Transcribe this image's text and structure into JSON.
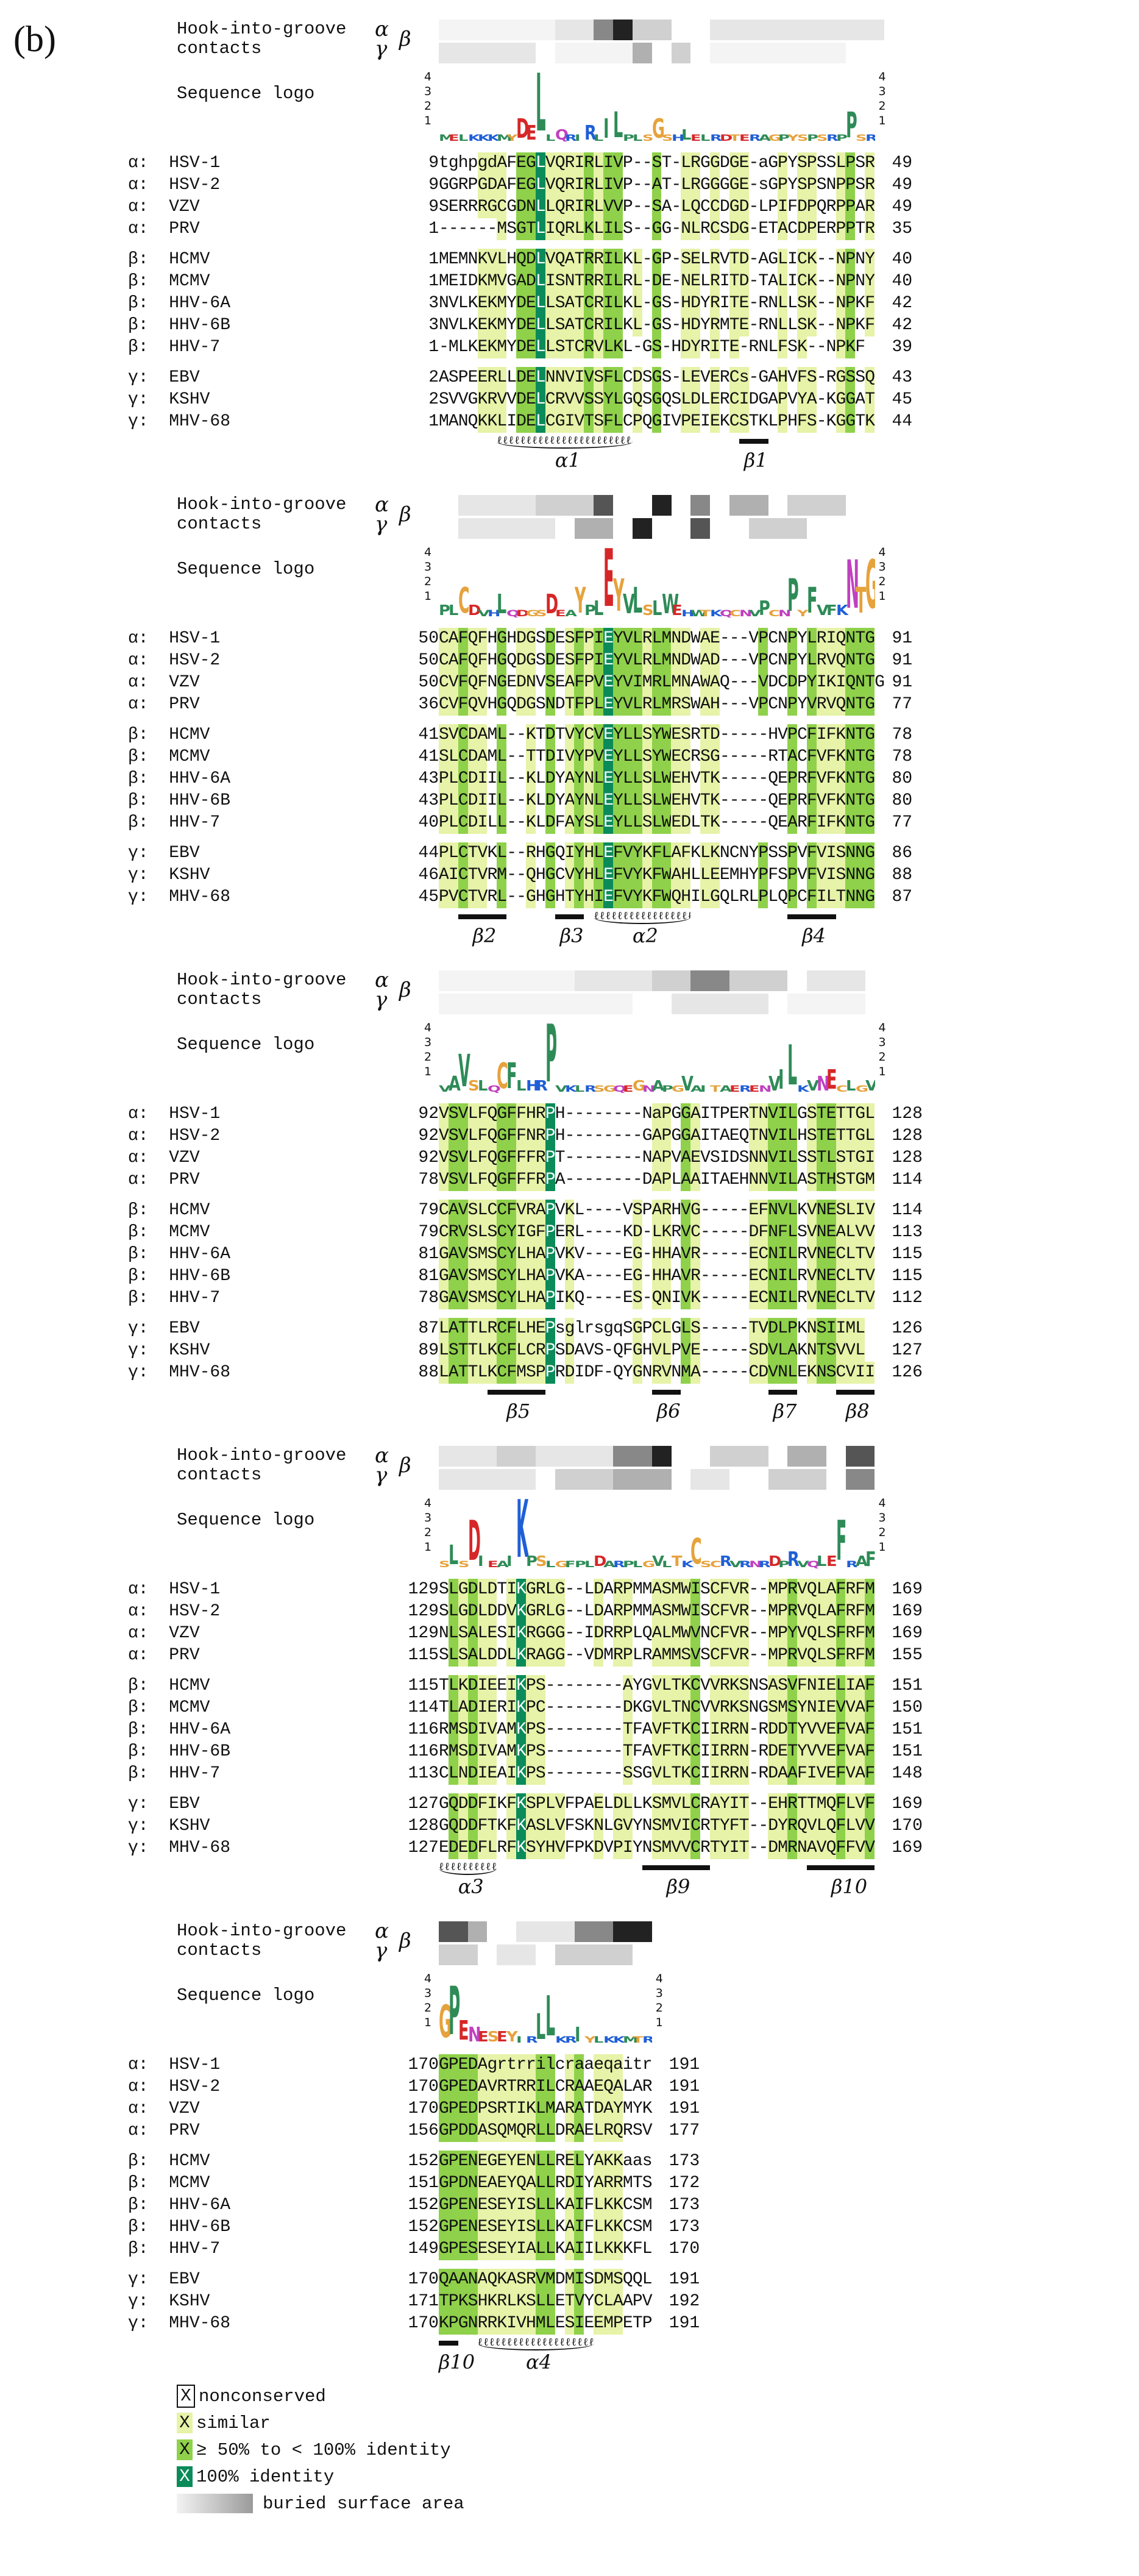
{
  "panel_label": "(b)",
  "header": {
    "contacts_label_1": "Hook-into-groove",
    "contacts_label_2": "contacts",
    "logo_label": "Sequence logo",
    "alpha_symbol": "α",
    "gamma_symbol": "γ",
    "beta_symbol": "β",
    "axis_ticks": [
      "4",
      "3",
      "2",
      "1"
    ]
  },
  "species": [
    {
      "label": "α:  HSV-1"
    },
    {
      "label": "α:  HSV-2"
    },
    {
      "label": "α:  VZV"
    },
    {
      "label": "α:  PRV"
    },
    {
      "label": "β:  HCMV"
    },
    {
      "label": "β:  MCMV"
    },
    {
      "label": "β:  HHV-6A"
    },
    {
      "label": "β:  HHV-6B"
    },
    {
      "label": "β:  HHV-7"
    },
    {
      "label": "γ:  EBV"
    },
    {
      "label": "γ:  KSHV"
    },
    {
      "label": "γ:  MHV-68"
    }
  ],
  "blocks": [
    {
      "rows": [
        {
          "start": "9",
          "seq": "tghpgdAFEGLVQRIRLIVP--ST-LRGGDGE-aGPYSPSSLPSR",
          "end": "49"
        },
        {
          "start": "9",
          "seq": "GGRPGDAFEGLVQRIRLIVP--AT-LRGGGGE-sGPYSPSNPPSR",
          "end": "49"
        },
        {
          "start": "9",
          "seq": "SERRRGCGDNLLQRIRLVVP--SA-LQCCDGD-LPIFDPQRPPAR",
          "end": "49"
        },
        {
          "start": "1",
          "seq": "------MSGTLIQRLKLILS--GG-NLRCSDG-ETACDPERPPTR",
          "end": "35"
        },
        {
          "start": "1",
          "seq": "MEMNKVLHQDLVQATRRILKL-GP-SELRVTD-AGLICK--NPNY",
          "end": "40"
        },
        {
          "start": "1",
          "seq": "MEIDKMVGADLISNTRRILRL-DE-NELRITD-TALICK--NPNY",
          "end": "40"
        },
        {
          "start": "3",
          "seq": "NVLKEKMYDELLSATCRILKL-GS-HDYRITE-RNLLSK--NPKF",
          "end": "42"
        },
        {
          "start": "3",
          "seq": "NVLKEKMYDELLSATCRILKL-GS-HDYRMTE-RNLLSK--NPKF",
          "end": "42"
        },
        {
          "start": "1",
          "seq": "-MLKEKMYDELLSTCRVLKL-GS-HDYRITE-RNLFSK--NPKF",
          "end": "39"
        },
        {
          "start": "2",
          "seq": "ASPEERLLDELNNVIVSFLCDSGS-LEVERCs-GAHVFS-RGSSQ",
          "end": "43"
        },
        {
          "start": "2",
          "seq": "SVVGKRVVDELCRVVSSYLGQSGQSLDLERCIDGAPVYA-KGGAT",
          "end": "45"
        },
        {
          "start": "1",
          "seq": "MANQKKLIDELCGIVTSFLCPQGIVPEIEKCSTKLPHFS-KGGTK",
          "end": "44"
        }
      ],
      "ss_labels": [
        "α1",
        "β1"
      ]
    },
    {
      "rows": [
        {
          "start": "50",
          "seq": "CAFQFHGHDGSDESFPIEYVLRLMNDWAE---VPCNPYLRIQNTG",
          "end": "91"
        },
        {
          "start": "50",
          "seq": "CAFQFHGQDGSDESFPIEYVLRLMNDWAD---VPCNPYLRVQNTG",
          "end": "91"
        },
        {
          "start": "50",
          "seq": "CVFQFNGEDNVSEAFPVEYVIMRLMNAWAQ---VDCDPYIKIQNTG",
          "end": "91"
        },
        {
          "start": "36",
          "seq": "CVFQVHGQDGSNDTFPLEYVLRLMRSWAH---VPCNPYVRVQNTG",
          "end": "77"
        },
        {
          "start": "41",
          "seq": "SVCDAML--KTDTVYCVEYLLSYWESRTD-----HVPCFIFKNTG",
          "end": "78"
        },
        {
          "start": "41",
          "seq": "SLCDAML--TTDIVYPVEYLLSYWECRSG-----RTACFVFKNTG",
          "end": "78"
        },
        {
          "start": "43",
          "seq": "PLCDIIL--KLDYAYNLEYLLSLWEHVTK-----QEPRFVFKNTG",
          "end": "80"
        },
        {
          "start": "43",
          "seq": "PLCDIIL--KLDYAYNLEYLLSLWEHVTK-----QEPRFVFKNTG",
          "end": "80"
        },
        {
          "start": "40",
          "seq": "PLCDILL--KLDFAYSLEYLLSLWEDLTK-----QEARFIFKNTG",
          "end": "77"
        },
        {
          "start": "44",
          "seq": "PLCTVKL--RHGQIYHLEFVYKFLAFKLKNCNYPSSPVFVISNNG",
          "end": "86"
        },
        {
          "start": "46",
          "seq": "AICTVRM--QHGCVYHLEFVYKFWAHLLEEMHYPFSPVFVISNNG",
          "end": "88"
        },
        {
          "start": "45",
          "seq": "PVCTVRL--GHGHTYHIEFVYKFWQHILGQLRLPLQPCFILTNNG",
          "end": "87"
        }
      ],
      "ss_labels": [
        "β2",
        "β3",
        "α2",
        "β4"
      ]
    },
    {
      "rows": [
        {
          "start": "92",
          "seq": "VSVLFQGFFHRPH--------NaPGGAITPERTNVILGSTETTGL",
          "end": "128"
        },
        {
          "start": "92",
          "seq": "VSVLFQGFFNRPH--------GAPGGAITAEQTNVILHSTETTGL",
          "end": "128"
        },
        {
          "start": "92",
          "seq": "VSVLFQGFFFRPT--------NAPVAEVSIDSNNVILSSTLSTGI",
          "end": "128"
        },
        {
          "start": "78",
          "seq": "VSVLFQGFFFRPA--------DAPLAAITAEHNNVILASTHSTGM",
          "end": "114"
        },
        {
          "start": "79",
          "seq": "CAVSLCCFVRAPVKL----VSPARHVG-----EFNVLKVNESLIV",
          "end": "114"
        },
        {
          "start": "79",
          "seq": "CRVSLSCYIGFPERL----KD-LKRVC-----DFNFLSVNEALVV",
          "end": "113"
        },
        {
          "start": "81",
          "seq": "GAVSMSCYLHAPVKV----EG-HHAVR-----ECNILRVNECLTV",
          "end": "115"
        },
        {
          "start": "81",
          "seq": "GAVSMSCYLHAPVKA----EG-HHAVR-----ECNILRVNECLTV",
          "end": "115"
        },
        {
          "start": "78",
          "seq": "GAVSMSCYLHAPIKQ----ES-QNIVK-----ECNILRVNECLTV",
          "end": "112"
        },
        {
          "start": "87",
          "seq": "LATTLRCFLHEPsglrsgqSGPCLGLS-----TVDLPKNSIIML",
          "end": "126"
        },
        {
          "start": "89",
          "seq": "LSTTLKCFLCRPSDAVS-QFGHVLPVE-----SDVLAKNTSVVL",
          "end": "127"
        },
        {
          "start": "88",
          "seq": "LATTLKCFMSPPRDIDF-QYGNRVNMA-----CDVNLEKNSCVII",
          "end": "126"
        }
      ],
      "ss_labels": [
        "β5",
        "β6",
        "β7",
        "β8"
      ]
    },
    {
      "rows": [
        {
          "start": "129",
          "seq": "SLGDLDTIKGRLG--LDARPMMASMWISCFVR--MPRVQLAFRFM",
          "end": "169"
        },
        {
          "start": "129",
          "seq": "SLGDLDDVKGRLG--LDARPMMASMWISCFVR--MPRVQLAFRFM",
          "end": "169"
        },
        {
          "start": "129",
          "seq": "NLSALESIKRGGG--IDRRPLQALMWVNCFVR--MPYVQLSFRFM",
          "end": "169"
        },
        {
          "start": "115",
          "seq": "SLSALDDLKRAGG--VDMRPLRAMMSVSCFVR--MPRVQLSFRFM",
          "end": "155"
        },
        {
          "start": "115",
          "seq": "TLKDIEEIKPS--------AYGVLTKCVVRKSNSASVFNIELIAF",
          "end": "151"
        },
        {
          "start": "114",
          "seq": "TLADIERIKPC--------DKGVLTNCVVRKSNGSMSYNIEVVAF",
          "end": "150"
        },
        {
          "start": "116",
          "seq": "RMSDIVAMKPS--------TFAVFTKCIIRRN-RDDTYVVEFVAF",
          "end": "151"
        },
        {
          "start": "116",
          "seq": "RMSDIVAMKPS--------TFAVFTKCIIRRN-RDETYVVEFVAF",
          "end": "151"
        },
        {
          "start": "113",
          "seq": "CLNDIEAIKPS--------SSGVLTKCIIRRN-RDAAFIVEFVAF",
          "end": "148"
        },
        {
          "start": "127",
          "seq": "GQDDFIKFKSPLVFPAELDLLKSMVLCRAYIT--EHRTTMQFLVF",
          "end": "169"
        },
        {
          "start": "128",
          "seq": "GQDDFTKFKASLVFSKNLGVYNSMVICRTYFT--DYRQVLQFLVV",
          "end": "170"
        },
        {
          "start": "127",
          "seq": "EDEDFLRFKSYHVFPKDVPIYNSMVVCRTYIT--DMRNAVQFFVV",
          "end": "169"
        }
      ],
      "ss_labels": [
        "α3",
        "β9",
        "β10"
      ]
    },
    {
      "rows": [
        {
          "start": "170",
          "seq": "GPEDAgrtrrilcraaeqaitr",
          "end": "191"
        },
        {
          "start": "170",
          "seq": "GPEDAVRTRRILCRAAEQALAR",
          "end": "191"
        },
        {
          "start": "170",
          "seq": "GPEDPSRTIKLMARATDAYMYK",
          "end": "191"
        },
        {
          "start": "156",
          "seq": "GPDDASQMQRLLDRAELRQRSV",
          "end": "177"
        },
        {
          "start": "152",
          "seq": "GPENEGEYENLLRELYAKKaas",
          "end": "173"
        },
        {
          "start": "151",
          "seq": "GPDNEAEYQALLRDIYARRMTS",
          "end": "172"
        },
        {
          "start": "152",
          "seq": "GPENESEYISLLKAIFLKKCSM",
          "end": "173"
        },
        {
          "start": "152",
          "seq": "GPENESEYISLLKAIFLKKCSM",
          "end": "173"
        },
        {
          "start": "149",
          "seq": "GPESESEYIALLKAIILKKKFL",
          "end": "170"
        },
        {
          "start": "170",
          "seq": "QAANAQKASRVMDMISDMSQQL",
          "end": "191"
        },
        {
          "start": "171",
          "seq": "TPKSHKRLKSLLETVYCLAAPV",
          "end": "192"
        },
        {
          "start": "170",
          "seq": "KPGNRRKIVHMLESIEEMPETP",
          "end": "191"
        }
      ],
      "ss_labels": [
        "β10",
        "α4"
      ]
    }
  ],
  "legend": {
    "nonconserved": "nonconserved",
    "similar": "similar",
    "partial": "≥ 50% to < 100% identity",
    "identity": "100% identity",
    "buried": "buried surface area",
    "box_char": "X"
  },
  "colors": {
    "similar": "#e6f3a8",
    "partial": "#8fd14a",
    "identity": "#0b8b5a"
  }
}
